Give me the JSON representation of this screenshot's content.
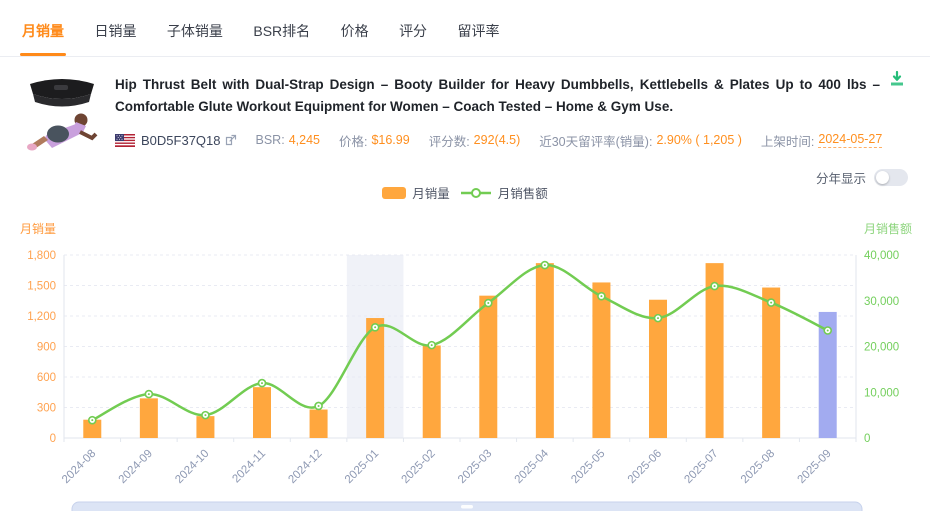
{
  "tabs": {
    "active_index": 0,
    "items": [
      {
        "label": "月销量"
      },
      {
        "label": "日销量"
      },
      {
        "label": "子体销量"
      },
      {
        "label": "BSR排名"
      },
      {
        "label": "价格"
      },
      {
        "label": "评分"
      },
      {
        "label": "留评率"
      }
    ]
  },
  "product": {
    "title": "Hip Thrust Belt with Dual-Strap Design – Booty Builder for Heavy Dumbbells, Kettlebells & Plates Up to 400 lbs – Comfortable Glute Workout Equipment for Women – Coach Tested – Home & Gym Use.",
    "asin": "B0D5F37Q18",
    "marketplace": "US"
  },
  "meta": {
    "bsr_label": "BSR:",
    "bsr_value": "4,245",
    "price_label": "价格:",
    "price_value": "$16.99",
    "rating_label": "评分数:",
    "rating_value": "292(4.5)",
    "review_label": "近30天留评率(销量):",
    "review_value": "2.90% ( 1,205 )",
    "listed_label": "上架时间:",
    "listed_value": "2024-05-27"
  },
  "controls": {
    "year_toggle_label": "分年显示",
    "year_toggle_on": false
  },
  "legend": {
    "bar_label": "月销量",
    "line_label": "月销售额"
  },
  "chart_data": {
    "type": "bar+line",
    "categories": [
      "2024-08",
      "2024-09",
      "2024-10",
      "2024-11",
      "2024-12",
      "2025-01",
      "2025-02",
      "2025-03",
      "2025-04",
      "2025-05",
      "2025-06",
      "2025-07",
      "2025-08",
      "2025-09"
    ],
    "series": [
      {
        "name": "月销量",
        "type": "bar",
        "axis": "left",
        "values": [
          180,
          390,
          215,
          500,
          280,
          1180,
          910,
          1400,
          1720,
          1530,
          1360,
          1720,
          1480,
          1240
        ]
      },
      {
        "name": "月销售额",
        "type": "line",
        "axis": "right",
        "values": [
          3900,
          9600,
          5000,
          12000,
          7000,
          24200,
          20300,
          29500,
          37800,
          31000,
          26200,
          33200,
          29600,
          23500
        ]
      }
    ],
    "left_axis": {
      "name": "月销量",
      "min": 0,
      "max": 1800,
      "ticks": [
        0,
        300,
        600,
        900,
        1200,
        1500,
        1800
      ]
    },
    "right_axis": {
      "name": "月销售额",
      "min": 0,
      "max": 40000,
      "ticks": [
        0,
        10000,
        20000,
        30000,
        40000
      ]
    },
    "highlight_index": 5,
    "current_month_index": 13,
    "grid": true,
    "legend_position": "top",
    "colors": {
      "bar": "#ffa73e",
      "current_month_bar": "#a2abf0",
      "line": "#72cc52",
      "marker_fill": "#ffffff",
      "left_axis_text": "#ffa24f",
      "left_axis_name": "#ff9a3d",
      "right_axis_text": "#73cf5c",
      "right_axis_name": "#8ed57e",
      "grid_line": "#e9ebf3",
      "axis_line": "#e2e6ee",
      "x_label": "#8e99b3",
      "highlight_band": "#f0f2f8",
      "zoom_slider_fill": "#dce4f5",
      "zoom_slider_border": "#c7d2ec"
    }
  },
  "theme": {
    "accent_orange": "#ff8a19",
    "value_orange": "#ff8f1f",
    "label_gray": "#8b93a6",
    "download_green": "#25bd79"
  }
}
